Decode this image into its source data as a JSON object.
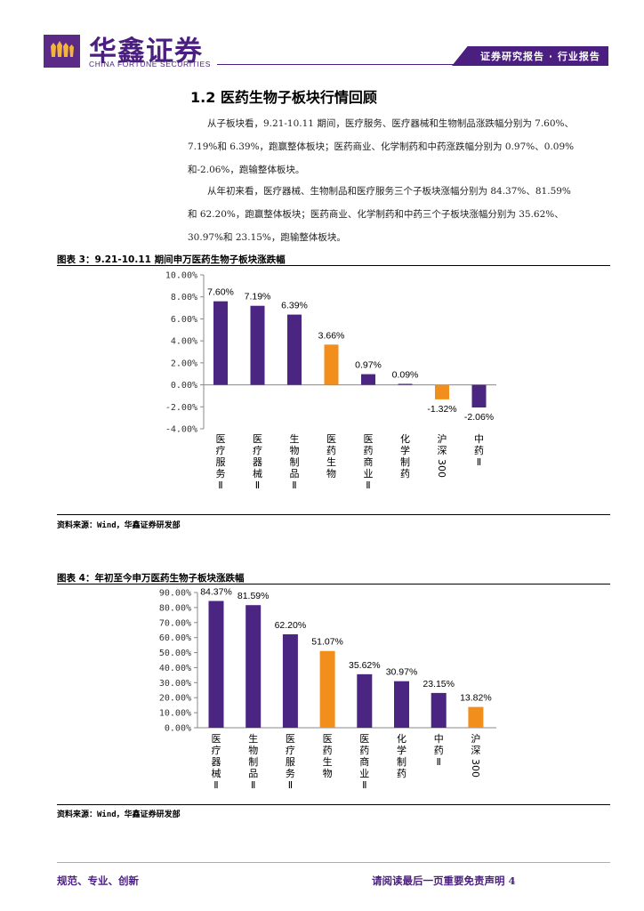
{
  "header": {
    "company_cn": "华鑫证券",
    "company_en": "CHINA FORTUNE SECURITIES",
    "report_tag": "证券研究报告 · 行业报告"
  },
  "section": {
    "title": "1.2 医药生物子板块行情回顾",
    "para1_lines": [
      "从子板块看，9.21-10.11 期间，医疗服务、医疗器械和生物制品涨跌幅分别为 7.60%、",
      "7.19%和 6.39%，跑赢整体板块；医药商业、化学制药和中药涨跌幅分别为 0.97%、0.09%",
      "和-2.06%，跑输整体板块。"
    ],
    "para2_lines": [
      "从年初来看，医疗器械、生物制品和医疗服务三个子板块涨幅分别为 84.37%、81.59%",
      "和 62.20%，跑赢整体板块；医药商业、化学制药和中药三个子板块涨幅分别为 35.62%、",
      "30.97%和 23.15%，跑输整体板块。"
    ]
  },
  "figure3": {
    "title": "图表 3：9.21-10.11 期间申万医药生物子板块涨跌幅",
    "source": "资料来源：Wind，华鑫证券研发部"
  },
  "figure4": {
    "title": "图表 4：年初至今申万医药生物子板块涨跌幅",
    "source": "资料来源：Wind，华鑫证券研发部"
  },
  "chart_data": [
    {
      "type": "bar",
      "title": "图表 3：9.21-10.11 期间申万医药生物子板块涨跌幅",
      "categories": [
        "医疗服务Ⅱ",
        "医疗器械Ⅱ",
        "生物制品Ⅱ",
        "医药生物",
        "医药商业Ⅱ",
        "化学制药",
        "沪深300",
        "中药Ⅱ"
      ],
      "values": [
        7.6,
        7.19,
        6.39,
        3.66,
        0.97,
        0.09,
        -1.32,
        -2.06
      ],
      "value_labels": [
        "7.60%",
        "7.19%",
        "6.39%",
        "3.66%",
        "0.97%",
        "0.09%",
        "-1.32%",
        "-2.06%"
      ],
      "ylim": [
        -4,
        10
      ],
      "yticks": [
        10,
        8,
        6,
        4,
        2,
        0,
        -2,
        -4
      ],
      "ytick_labels": [
        "10.00%",
        "8.00%",
        "6.00%",
        "4.00%",
        "2.00%",
        "0.00%",
        "-2.00%",
        "-4.00%"
      ],
      "highlight": [
        3,
        6
      ],
      "colors": {
        "default": "#4b2582",
        "highlight": "#f28e1c"
      },
      "grid": false,
      "legend": "none"
    },
    {
      "type": "bar",
      "title": "图表 4：年初至今申万医药生物子板块涨跌幅",
      "categories": [
        "医疗器械Ⅱ",
        "生物制品Ⅱ",
        "医疗服务Ⅱ",
        "医药生物",
        "医药商业Ⅱ",
        "化学制药",
        "中药Ⅱ",
        "沪深300"
      ],
      "values": [
        84.37,
        81.59,
        62.2,
        51.07,
        35.62,
        30.97,
        23.15,
        13.82
      ],
      "value_labels": [
        "84.37%",
        "81.59%",
        "62.20%",
        "51.07%",
        "35.62%",
        "30.97%",
        "23.15%",
        "13.82%"
      ],
      "ylim": [
        0,
        90
      ],
      "yticks": [
        90,
        80,
        70,
        60,
        50,
        40,
        30,
        20,
        10,
        0
      ],
      "ytick_labels": [
        "90.00%",
        "80.00%",
        "70.00%",
        "60.00%",
        "50.00%",
        "40.00%",
        "30.00%",
        "20.00%",
        "10.00%",
        "0.00%"
      ],
      "highlight": [
        3,
        7
      ],
      "colors": {
        "default": "#4b2582",
        "highlight": "#f28e1c"
      },
      "grid": false,
      "legend": "none"
    }
  ],
  "footer": {
    "left": "规范、专业、创新",
    "right": "请阅读最后一页重要免责声明 4"
  }
}
